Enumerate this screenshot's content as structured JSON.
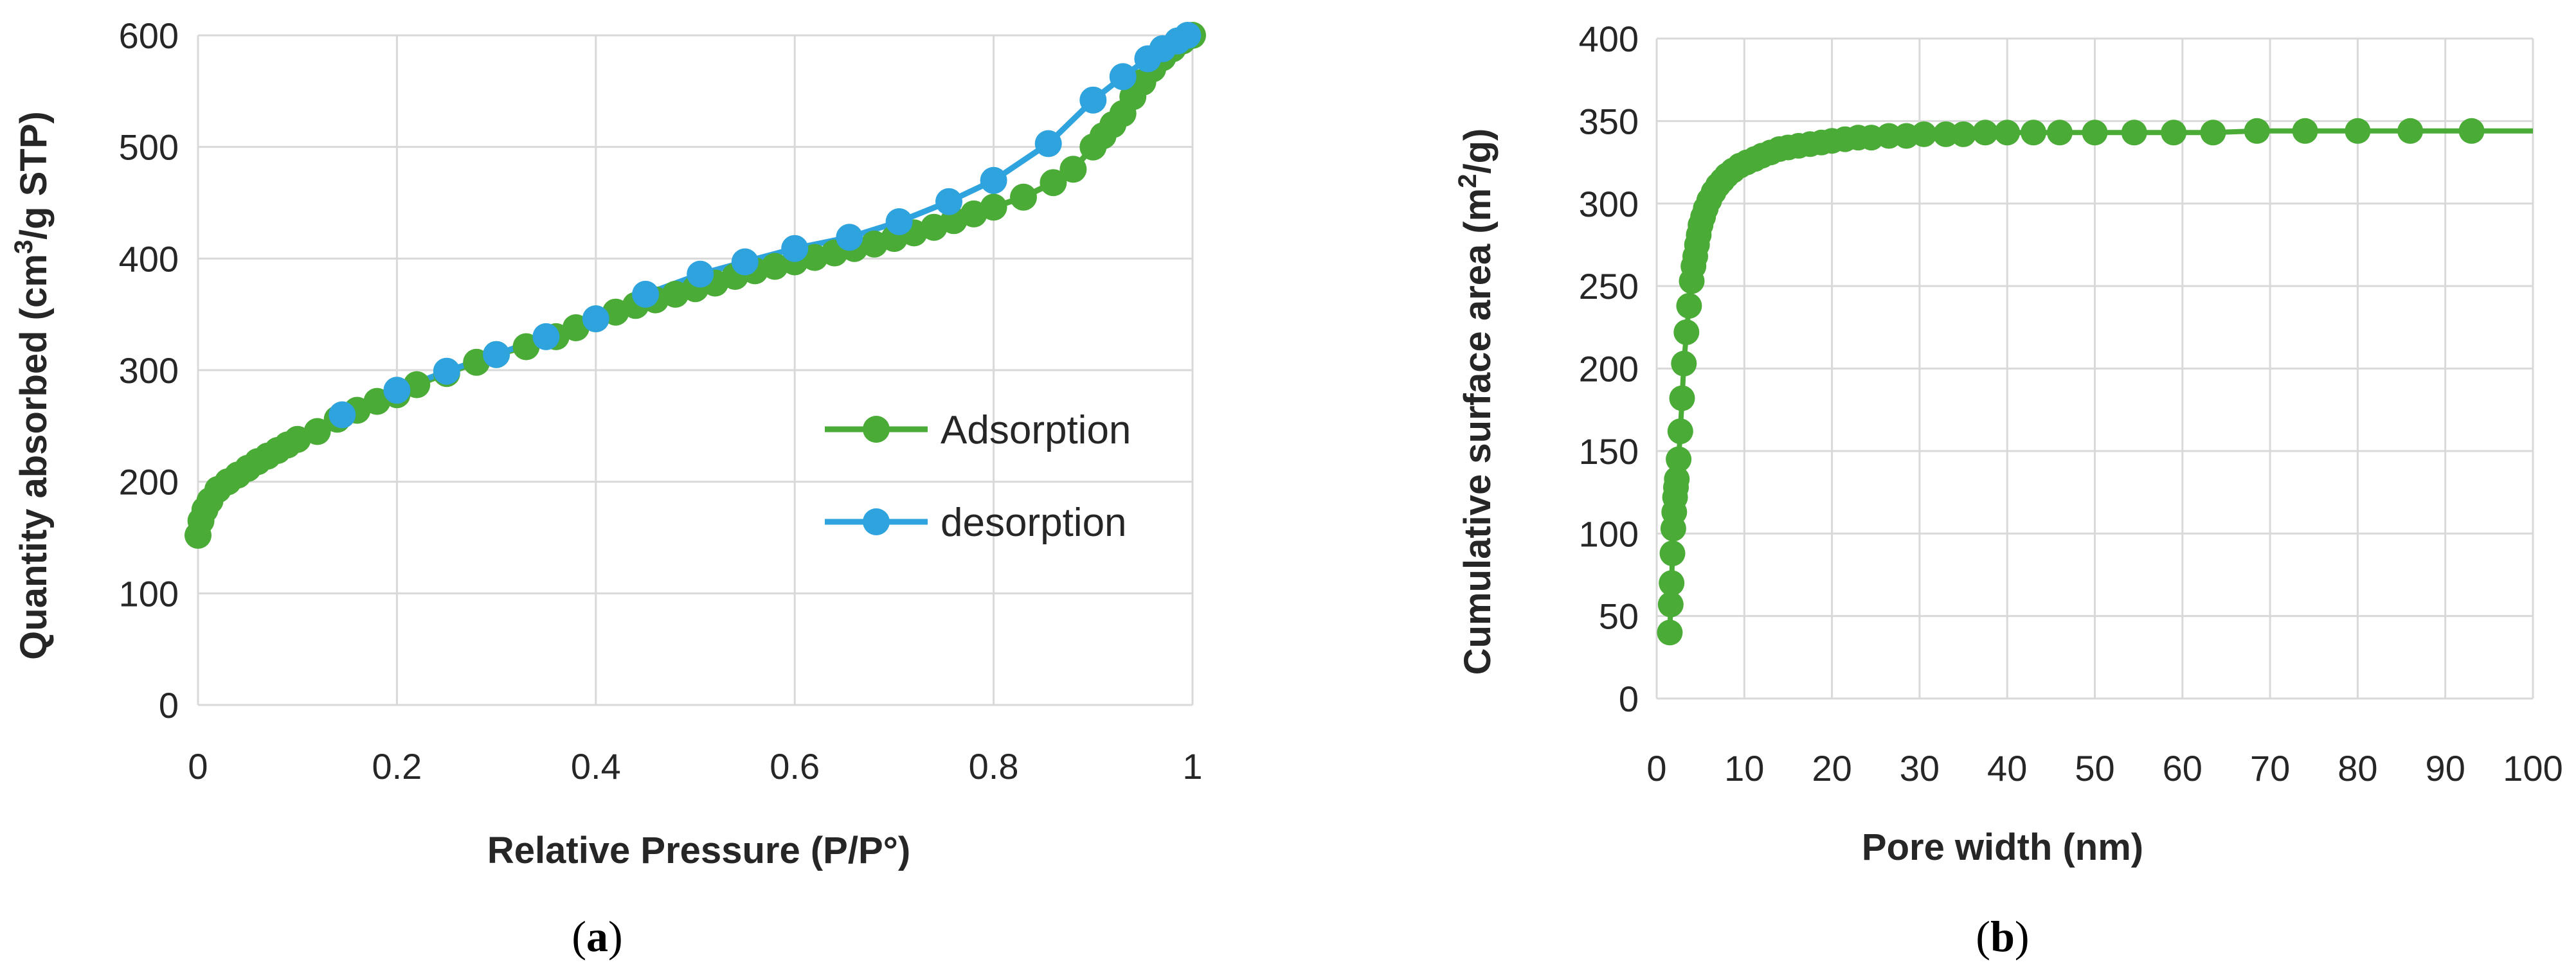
{
  "colors": {
    "adsorption": "#4aab36",
    "desorption": "#2ea3dd",
    "grid": "#d9d9d9",
    "text": "#262626"
  },
  "chart_data": [
    {
      "id": "a",
      "type": "scatter",
      "panel_label": "a",
      "xlabel": "Relative Pressure (P/P°)",
      "ylabel_prefix": "Quantity absorbed (cm",
      "ylabel_sup": "3",
      "ylabel_suffix": "/g STP)",
      "xlim": [
        0,
        1
      ],
      "ylim": [
        0,
        600
      ],
      "x_ticks": [
        0,
        0.2,
        0.4,
        0.6,
        0.8,
        1
      ],
      "x_tick_labels": [
        "0",
        "0.2",
        "0.4",
        "0.6",
        "0.8",
        "1"
      ],
      "y_ticks": [
        0,
        100,
        200,
        300,
        400,
        500,
        600
      ],
      "y_tick_labels": [
        "0",
        "100",
        "200",
        "300",
        "400",
        "500",
        "600"
      ],
      "grid": true,
      "legend": "right-middle",
      "series": [
        {
          "name": "Adsorption",
          "color": "#4aab36",
          "points": [
            [
              0.0,
              152
            ],
            [
              0.003,
              165
            ],
            [
              0.007,
              175
            ],
            [
              0.012,
              183
            ],
            [
              0.02,
              193
            ],
            [
              0.03,
              200
            ],
            [
              0.04,
              206
            ],
            [
              0.05,
              212
            ],
            [
              0.06,
              218
            ],
            [
              0.07,
              223
            ],
            [
              0.08,
              228
            ],
            [
              0.09,
              233
            ],
            [
              0.1,
              238
            ],
            [
              0.12,
              245
            ],
            [
              0.14,
              256
            ],
            [
              0.16,
              264
            ],
            [
              0.18,
              272
            ],
            [
              0.2,
              278
            ],
            [
              0.22,
              287
            ],
            [
              0.25,
              297
            ],
            [
              0.28,
              307
            ],
            [
              0.3,
              314
            ],
            [
              0.33,
              321
            ],
            [
              0.36,
              330
            ],
            [
              0.38,
              338
            ],
            [
              0.4,
              346
            ],
            [
              0.42,
              352
            ],
            [
              0.44,
              358
            ],
            [
              0.46,
              363
            ],
            [
              0.48,
              368
            ],
            [
              0.5,
              373
            ],
            [
              0.52,
              378
            ],
            [
              0.54,
              384
            ],
            [
              0.56,
              389
            ],
            [
              0.58,
              393
            ],
            [
              0.6,
              397
            ],
            [
              0.62,
              401
            ],
            [
              0.64,
              405
            ],
            [
              0.66,
              409
            ],
            [
              0.68,
              413
            ],
            [
              0.7,
              418
            ],
            [
              0.72,
              423
            ],
            [
              0.74,
              428
            ],
            [
              0.76,
              434
            ],
            [
              0.78,
              440
            ],
            [
              0.8,
              446
            ],
            [
              0.83,
              455
            ],
            [
              0.86,
              468
            ],
            [
              0.88,
              480
            ],
            [
              0.9,
              500
            ],
            [
              0.91,
              510
            ],
            [
              0.92,
              520
            ],
            [
              0.93,
              530
            ],
            [
              0.94,
              545
            ],
            [
              0.95,
              558
            ],
            [
              0.96,
              570
            ],
            [
              0.97,
              580
            ],
            [
              0.98,
              588
            ],
            [
              0.99,
              595
            ],
            [
              1.0,
              600
            ]
          ]
        },
        {
          "name": "desorption",
          "color": "#2ea3dd",
          "points": [
            [
              0.145,
              260
            ],
            [
              0.2,
              282
            ],
            [
              0.25,
              299
            ],
            [
              0.3,
              314
            ],
            [
              0.35,
              330
            ],
            [
              0.4,
              346
            ],
            [
              0.45,
              368
            ],
            [
              0.505,
              386
            ],
            [
              0.55,
              397
            ],
            [
              0.6,
              409
            ],
            [
              0.655,
              419
            ],
            [
              0.705,
              433
            ],
            [
              0.755,
              451
            ],
            [
              0.8,
              470
            ],
            [
              0.855,
              503
            ],
            [
              0.9,
              542
            ],
            [
              0.93,
              563
            ],
            [
              0.955,
              579
            ],
            [
              0.97,
              588
            ],
            [
              0.985,
              595
            ],
            [
              0.995,
              600
            ]
          ]
        }
      ]
    },
    {
      "id": "b",
      "type": "scatter",
      "panel_label": "b",
      "xlabel": "Pore width (nm)",
      "ylabel_prefix": "Cumulative surface area (m",
      "ylabel_sup": "2",
      "ylabel_suffix": "/g)",
      "xlim": [
        0,
        100
      ],
      "ylim": [
        0,
        400
      ],
      "x_ticks": [
        0,
        10,
        20,
        30,
        40,
        50,
        60,
        70,
        80,
        90,
        100
      ],
      "x_tick_labels": [
        "0",
        "10",
        "20",
        "30",
        "40",
        "50",
        "60",
        "70",
        "80",
        "90",
        "100"
      ],
      "y_ticks": [
        0,
        50,
        100,
        150,
        200,
        250,
        300,
        350,
        400
      ],
      "y_tick_labels": [
        "0",
        "50",
        "100",
        "150",
        "200",
        "250",
        "300",
        "350",
        "400"
      ],
      "grid": true,
      "legend": "none",
      "series": [
        {
          "name": "Cumulative surface area",
          "color": "#4aab36",
          "line_extends_to_x": 100,
          "points": [
            [
              1.5,
              40
            ],
            [
              1.6,
              57
            ],
            [
              1.7,
              70
            ],
            [
              1.8,
              88
            ],
            [
              1.9,
              103
            ],
            [
              2.0,
              113
            ],
            [
              2.1,
              122
            ],
            [
              2.2,
              128
            ],
            [
              2.3,
              133
            ],
            [
              2.5,
              145
            ],
            [
              2.7,
              162
            ],
            [
              2.9,
              182
            ],
            [
              3.1,
              203
            ],
            [
              3.4,
              222
            ],
            [
              3.7,
              238
            ],
            [
              4.0,
              253
            ],
            [
              4.2,
              262
            ],
            [
              4.4,
              268
            ],
            [
              4.6,
              275
            ],
            [
              4.8,
              281
            ],
            [
              5.0,
              287
            ],
            [
              5.3,
              292
            ],
            [
              5.6,
              297
            ],
            [
              6.0,
              302
            ],
            [
              6.5,
              307
            ],
            [
              7.0,
              311
            ],
            [
              7.5,
              314
            ],
            [
              8.0,
              317
            ],
            [
              8.7,
              320
            ],
            [
              9.5,
              323
            ],
            [
              10.3,
              325
            ],
            [
              11.2,
              327
            ],
            [
              12.0,
              329
            ],
            [
              13.0,
              331
            ],
            [
              14.0,
              333
            ],
            [
              15.0,
              334
            ],
            [
              16.2,
              335
            ],
            [
              17.5,
              336
            ],
            [
              18.8,
              337
            ],
            [
              20.0,
              338
            ],
            [
              21.5,
              339
            ],
            [
              23.0,
              340
            ],
            [
              24.5,
              340
            ],
            [
              26.5,
              341
            ],
            [
              28.5,
              341
            ],
            [
              30.5,
              342
            ],
            [
              33.0,
              342
            ],
            [
              35.0,
              342
            ],
            [
              37.5,
              343
            ],
            [
              40.0,
              343
            ],
            [
              43.0,
              343
            ],
            [
              46.0,
              343
            ],
            [
              50.0,
              343
            ],
            [
              54.5,
              343
            ],
            [
              59.0,
              343
            ],
            [
              63.5,
              343
            ],
            [
              68.5,
              344
            ],
            [
              74.0,
              344
            ],
            [
              80.0,
              344
            ],
            [
              86.0,
              344
            ],
            [
              93.0,
              344
            ]
          ]
        }
      ]
    }
  ]
}
